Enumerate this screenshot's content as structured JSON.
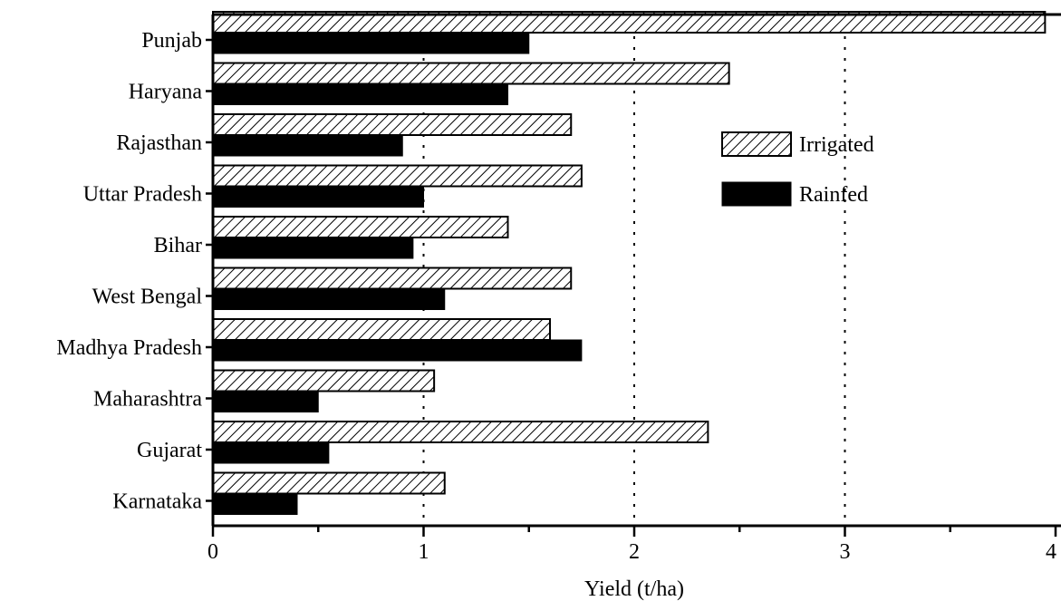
{
  "chart_data": {
    "type": "bar",
    "orientation": "horizontal",
    "categories": [
      "Punjab",
      "Haryana",
      "Rajasthan",
      "Uttar Pradesh",
      "Bihar",
      "West Bengal",
      "Madhya Pradesh",
      "Maharashtra",
      "Gujarat",
      "Karnataka"
    ],
    "series": [
      {
        "name": "Irrigated",
        "pattern": "hatched",
        "color": "#000000",
        "values": [
          3.95,
          2.45,
          1.7,
          1.75,
          1.4,
          1.7,
          1.6,
          1.05,
          2.35,
          1.1
        ]
      },
      {
        "name": "Rainfed",
        "pattern": "solid",
        "color": "#000000",
        "values": [
          1.5,
          1.4,
          0.9,
          1.0,
          0.95,
          1.1,
          1.75,
          0.5,
          0.55,
          0.4
        ]
      }
    ],
    "xlabel": "Yield (t/ha)",
    "xlim": [
      0,
      4
    ],
    "xticks": [
      "0",
      "1",
      "2",
      "3",
      "4"
    ],
    "grid": "dotted vertical lines at 1, 2, 3",
    "legend_position": "upper-right, inside plot"
  }
}
